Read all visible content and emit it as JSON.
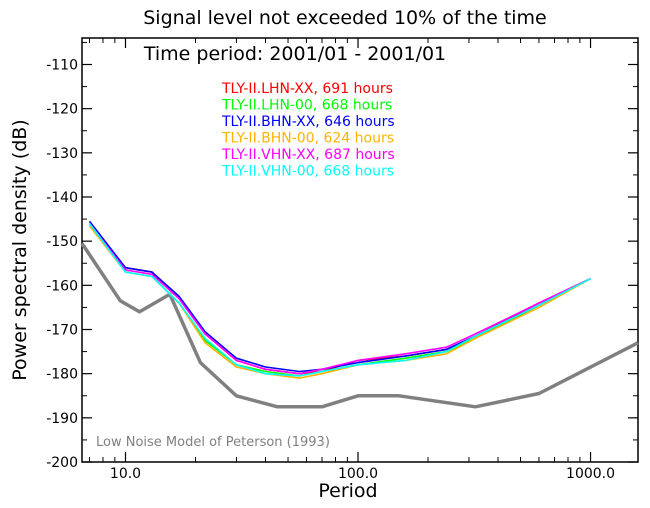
{
  "chart_data": {
    "type": "line",
    "title": "Signal level not exceeded 10% of the time",
    "subtitle": "Time period: 2001/01 - 2001/01",
    "xlabel": "Period",
    "ylabel": "Power spectral density (dB)",
    "xscale": "log",
    "xlim": [
      6.5,
      1600
    ],
    "ylim": [
      -200,
      -104
    ],
    "x_ticks": [
      10,
      100,
      1000
    ],
    "x_tick_labels": [
      "10.0",
      "100.0",
      "1000.0"
    ],
    "y_ticks": [
      -200,
      -190,
      -180,
      -170,
      -160,
      -150,
      -140,
      -130,
      -120,
      -110
    ],
    "y_tick_labels": [
      "-200",
      "-190",
      "-180",
      "-170",
      "-160",
      "-150",
      "-140",
      "-130",
      "-120",
      "-110"
    ],
    "grid": false,
    "legend_position": "top-center",
    "annotation": "Low Noise Model of Peterson (1993)",
    "series": [
      {
        "name": "TLY-II.LHN-XX, 691 hours",
        "color": "#ff0000",
        "x": [
          7,
          10,
          13,
          17,
          22,
          30,
          40,
          56,
          70,
          100,
          160,
          240,
          320,
          600,
          1000
        ],
        "y": [
          -146,
          -156,
          -157,
          -163,
          -171,
          -177,
          -179,
          -180,
          -179.5,
          -177,
          -176,
          -174.5,
          -171.5,
          -164,
          -158.5
        ]
      },
      {
        "name": "TLY-II.LHN-00, 668 hours",
        "color": "#00ff00",
        "x": [
          7,
          10,
          13,
          17,
          22,
          30,
          40,
          56,
          70,
          100,
          160,
          240,
          320,
          600,
          1000
        ],
        "y": [
          -146,
          -157,
          -158,
          -164,
          -172.5,
          -178,
          -179.5,
          -180.5,
          -179.5,
          -178,
          -176.5,
          -175,
          -172,
          -164.5,
          -158.5
        ]
      },
      {
        "name": "TLY-II.BHN-XX, 646 hours",
        "color": "#0000ff",
        "x": [
          7,
          10,
          13,
          17,
          22,
          30,
          40,
          56,
          70,
          100,
          160,
          240,
          320,
          600,
          1000
        ],
        "y": [
          -145.5,
          -156,
          -157,
          -162.5,
          -170.5,
          -176.5,
          -178.5,
          -179.5,
          -179,
          -177.5,
          -176,
          -174.5,
          -171.5,
          -164.5,
          -158.5
        ]
      },
      {
        "name": "TLY-II.BHN-00, 624 hours",
        "color": "#ffb300",
        "x": [
          7,
          10,
          13,
          17,
          22,
          30,
          40,
          56,
          70,
          100,
          160,
          240,
          320,
          600,
          1000
        ],
        "y": [
          -146.5,
          -157,
          -158,
          -164,
          -173,
          -178.5,
          -180,
          -181,
          -180,
          -178,
          -177,
          -175.5,
          -172,
          -165,
          -158.5
        ]
      },
      {
        "name": "TLY-II.VHN-XX, 687 hours",
        "color": "#ff00ff",
        "x": [
          7,
          10,
          13,
          17,
          22,
          30,
          40,
          56,
          70,
          100,
          160,
          240,
          320,
          600,
          1000
        ],
        "y": [
          -146,
          -156.5,
          -157.5,
          -163,
          -171,
          -177,
          -179,
          -180,
          -179,
          -177,
          -175.5,
          -174,
          -171,
          -164,
          -158.5
        ]
      },
      {
        "name": "TLY-II.VHN-00, 668 hours",
        "color": "#00ffff",
        "x": [
          7,
          10,
          13,
          17,
          22,
          30,
          40,
          56,
          70,
          100,
          160,
          240,
          320,
          600,
          1000
        ],
        "y": [
          -146,
          -157,
          -158,
          -164,
          -172,
          -178,
          -180,
          -180.5,
          -179.5,
          -178,
          -177,
          -175,
          -171.5,
          -164.5,
          -158.5
        ]
      },
      {
        "name": "",
        "color": "#808080",
        "x": [
          6.5,
          9.5,
          11.5,
          15.5,
          21,
          30,
          45,
          70,
          100,
          150,
          320,
          600,
          1600
        ],
        "y": [
          -150.5,
          -163.5,
          -166,
          -162,
          -177.5,
          -185,
          -187.5,
          -187.5,
          -185,
          -185,
          -187.5,
          -184.5,
          -173
        ]
      }
    ]
  }
}
